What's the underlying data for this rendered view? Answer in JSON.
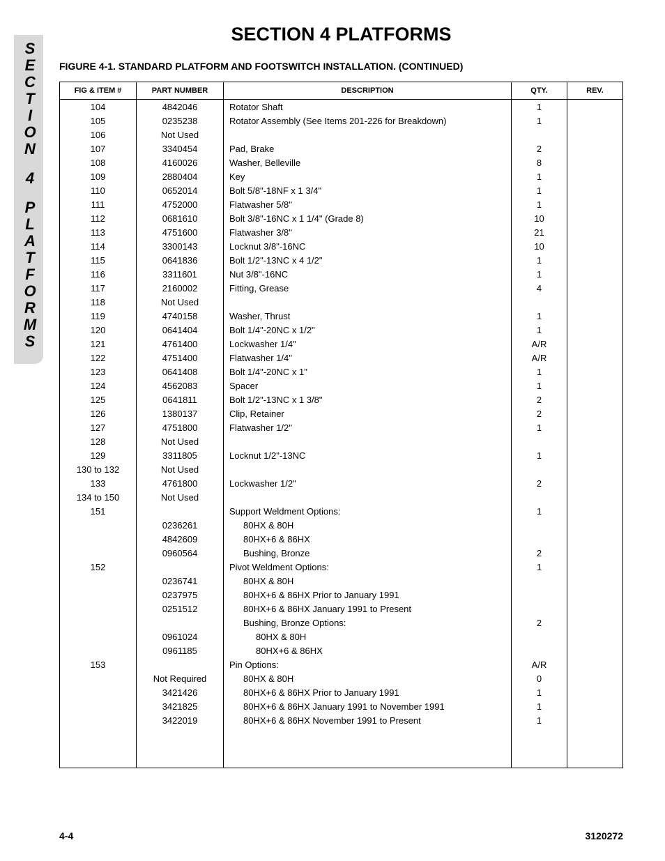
{
  "side_tab": {
    "text": "SECTION 4 PLATFORMS"
  },
  "section_title": "SECTION 4  PLATFORMS",
  "figure_title": "FIGURE 4-1.  STANDARD PLATFORM AND FOOTSWITCH INSTALLATION. (CONTINUED)",
  "table": {
    "headers": {
      "item": "FIG & ITEM #",
      "part": "PART NUMBER",
      "desc": "DESCRIPTION",
      "qty": "QTY.",
      "rev": "REV."
    },
    "rows": [
      {
        "item": "104",
        "part": "4842046",
        "desc": "Rotator Shaft",
        "qty": "1",
        "rev": "",
        "indent": 0
      },
      {
        "item": "105",
        "part": "0235238",
        "desc": "Rotator Assembly (See Items 201-226 for Breakdown)",
        "qty": "1",
        "rev": "",
        "indent": 0
      },
      {
        "item": "106",
        "part": "Not Used",
        "desc": "",
        "qty": "",
        "rev": "",
        "indent": 0
      },
      {
        "item": "107",
        "part": "3340454",
        "desc": "Pad, Brake",
        "qty": "2",
        "rev": "",
        "indent": 0
      },
      {
        "item": "108",
        "part": "4160026",
        "desc": "Washer, Belleville",
        "qty": "8",
        "rev": "",
        "indent": 0
      },
      {
        "item": "109",
        "part": "2880404",
        "desc": "Key",
        "qty": "1",
        "rev": "",
        "indent": 0
      },
      {
        "item": "110",
        "part": "0652014",
        "desc": "Bolt 5/8\"-18NF x 1 3/4\"",
        "qty": "1",
        "rev": "",
        "indent": 0
      },
      {
        "item": "111",
        "part": "4752000",
        "desc": "Flatwasher 5/8\"",
        "qty": "1",
        "rev": "",
        "indent": 0
      },
      {
        "item": "112",
        "part": "0681610",
        "desc": "Bolt 3/8\"-16NC x 1 1/4\" (Grade 8)",
        "qty": "10",
        "rev": "",
        "indent": 0
      },
      {
        "item": "113",
        "part": "4751600",
        "desc": "Flatwasher 3/8\"",
        "qty": "21",
        "rev": "",
        "indent": 0
      },
      {
        "item": "114",
        "part": "3300143",
        "desc": "Locknut 3/8\"-16NC",
        "qty": "10",
        "rev": "",
        "indent": 0
      },
      {
        "item": "115",
        "part": "0641836",
        "desc": "Bolt 1/2\"-13NC x 4 1/2\"",
        "qty": "1",
        "rev": "",
        "indent": 0
      },
      {
        "item": "116",
        "part": "3311601",
        "desc": "Nut 3/8\"-16NC",
        "qty": "1",
        "rev": "",
        "indent": 0
      },
      {
        "item": "117",
        "part": "2160002",
        "desc": "Fitting, Grease",
        "qty": "4",
        "rev": "",
        "indent": 0
      },
      {
        "item": "118",
        "part": "Not Used",
        "desc": "",
        "qty": "",
        "rev": "",
        "indent": 0
      },
      {
        "item": "119",
        "part": "4740158",
        "desc": "Washer, Thrust",
        "qty": "1",
        "rev": "",
        "indent": 0
      },
      {
        "item": "120",
        "part": "0641404",
        "desc": "Bolt 1/4\"-20NC x 1/2\"",
        "qty": "1",
        "rev": "",
        "indent": 0
      },
      {
        "item": "121",
        "part": "4761400",
        "desc": "Lockwasher 1/4\"",
        "qty": "A/R",
        "rev": "",
        "indent": 0
      },
      {
        "item": "122",
        "part": "4751400",
        "desc": "Flatwasher 1/4\"",
        "qty": "A/R",
        "rev": "",
        "indent": 0
      },
      {
        "item": "123",
        "part": "0641408",
        "desc": "Bolt 1/4\"-20NC x 1\"",
        "qty": "1",
        "rev": "",
        "indent": 0
      },
      {
        "item": "124",
        "part": "4562083",
        "desc": "Spacer",
        "qty": "1",
        "rev": "",
        "indent": 0
      },
      {
        "item": "125",
        "part": "0641811",
        "desc": "Bolt 1/2\"-13NC x 1 3/8\"",
        "qty": "2",
        "rev": "",
        "indent": 0
      },
      {
        "item": "126",
        "part": "1380137",
        "desc": "Clip, Retainer",
        "qty": "2",
        "rev": "",
        "indent": 0
      },
      {
        "item": "127",
        "part": "4751800",
        "desc": "Flatwasher 1/2\"",
        "qty": "1",
        "rev": "",
        "indent": 0
      },
      {
        "item": "128",
        "part": "Not Used",
        "desc": "",
        "qty": "",
        "rev": "",
        "indent": 0
      },
      {
        "item": "129",
        "part": "3311805",
        "desc": "Locknut 1/2\"-13NC",
        "qty": "1",
        "rev": "",
        "indent": 0
      },
      {
        "item": "130 to 132",
        "part": "Not Used",
        "desc": "",
        "qty": "",
        "rev": "",
        "indent": 0
      },
      {
        "item": "133",
        "part": "4761800",
        "desc": "Lockwasher 1/2\"",
        "qty": "2",
        "rev": "",
        "indent": 0
      },
      {
        "item": "134 to 150",
        "part": "Not Used",
        "desc": "",
        "qty": "",
        "rev": "",
        "indent": 0
      },
      {
        "item": "151",
        "part": "",
        "desc": "Support Weldment Options:",
        "qty": "1",
        "rev": "",
        "indent": 0
      },
      {
        "item": "",
        "part": "0236261",
        "desc": "80HX & 80H",
        "qty": "",
        "rev": "",
        "indent": 1
      },
      {
        "item": "",
        "part": "4842609",
        "desc": "80HX+6 & 86HX",
        "qty": "",
        "rev": "",
        "indent": 1
      },
      {
        "item": "",
        "part": "0960564",
        "desc": "Bushing, Bronze",
        "qty": "2",
        "rev": "",
        "indent": 1
      },
      {
        "item": "152",
        "part": "",
        "desc": "Pivot Weldment Options:",
        "qty": "1",
        "rev": "",
        "indent": 0
      },
      {
        "item": "",
        "part": "0236741",
        "desc": "80HX & 80H",
        "qty": "",
        "rev": "",
        "indent": 1
      },
      {
        "item": "",
        "part": "0237975",
        "desc": "80HX+6 & 86HX Prior to January 1991",
        "qty": "",
        "rev": "",
        "indent": 1
      },
      {
        "item": "",
        "part": "0251512",
        "desc": "80HX+6 & 86HX January 1991 to Present",
        "qty": "",
        "rev": "",
        "indent": 1
      },
      {
        "item": "",
        "part": "",
        "desc": "Bushing, Bronze Options:",
        "qty": "2",
        "rev": "",
        "indent": 1
      },
      {
        "item": "",
        "part": "0961024",
        "desc": "80HX & 80H",
        "qty": "",
        "rev": "",
        "indent": 2
      },
      {
        "item": "",
        "part": "0961185",
        "desc": "80HX+6 & 86HX",
        "qty": "",
        "rev": "",
        "indent": 2
      },
      {
        "item": "153",
        "part": "",
        "desc": "Pin Options:",
        "qty": "A/R",
        "rev": "",
        "indent": 0
      },
      {
        "item": "",
        "part": "Not Required",
        "desc": "80HX & 80H",
        "qty": "0",
        "rev": "",
        "indent": 1
      },
      {
        "item": "",
        "part": "3421426",
        "desc": "80HX+6 & 86HX Prior to January 1991",
        "qty": "1",
        "rev": "",
        "indent": 1
      },
      {
        "item": "",
        "part": "3421825",
        "desc": "80HX+6 & 86HX January 1991 to November 1991",
        "qty": "1",
        "rev": "",
        "indent": 1
      },
      {
        "item": "",
        "part": "3422019",
        "desc": "80HX+6 & 86HX November 1991 to Present",
        "qty": "1",
        "rev": "",
        "indent": 1
      }
    ]
  },
  "footer": {
    "page": "4-4",
    "doc": "3120272"
  },
  "colors": {
    "tab_bg": "#d9d9d9",
    "text": "#000000",
    "border": "#000000"
  }
}
